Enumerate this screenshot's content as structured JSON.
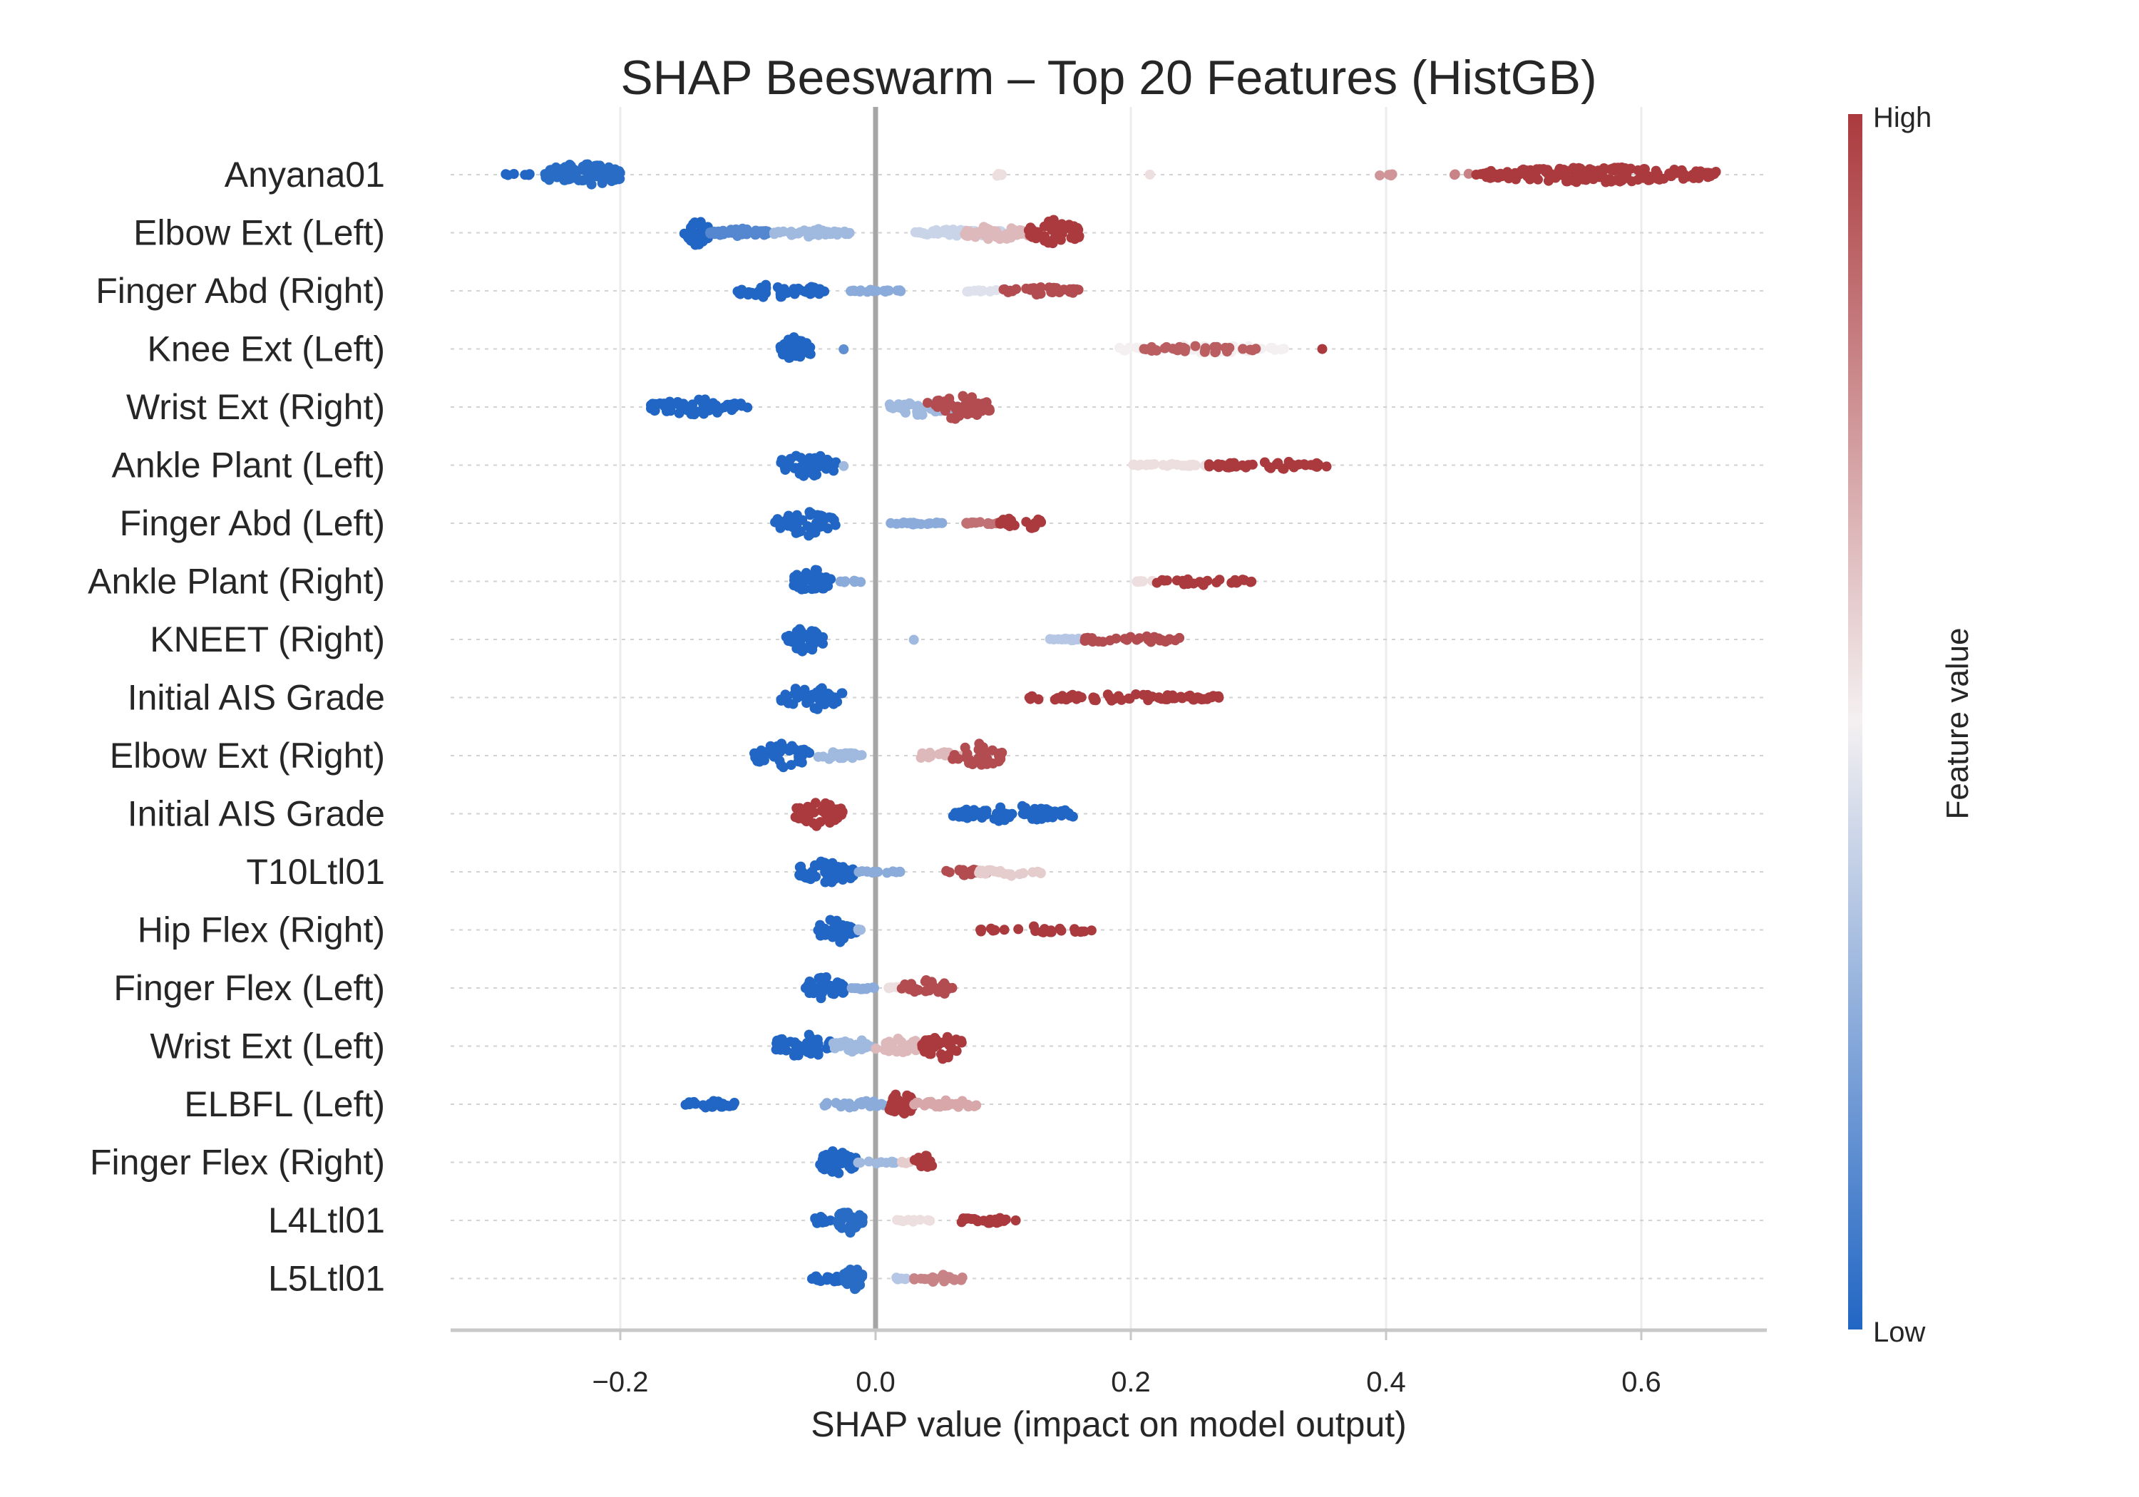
{
  "chart_data": {
    "type": "scatter",
    "subtype": "shap-beeswarm",
    "title": "SHAP Beeswarm – Top 20 Features (HistGB)",
    "xlabel": "SHAP value (impact on model output)",
    "xlim": [
      -0.33,
      0.71
    ],
    "xticks": [
      -0.2,
      0.0,
      0.2,
      0.4,
      0.6
    ],
    "xtick_labels": [
      "−0.2",
      "0.0",
      "0.2",
      "0.4",
      "0.6"
    ],
    "grid": true,
    "zero_line": true,
    "colorbar": {
      "label": "Feature value",
      "high_label": "High",
      "low_label": "Low",
      "colors": [
        "#2166c4",
        "#f4f0f1",
        "#ab3a3e"
      ]
    },
    "features": [
      {
        "name": "Anyana01",
        "clusters": [
          {
            "min": -0.29,
            "max": -0.27,
            "fv": 0.0,
            "n": 6
          },
          {
            "min": -0.26,
            "max": -0.2,
            "fv": 0.02,
            "n": 90,
            "width": 3
          },
          {
            "min": 0.09,
            "max": 0.1,
            "fv": 0.55,
            "n": 4
          },
          {
            "min": 0.215,
            "max": 0.215,
            "fv": 0.55,
            "n": 1
          },
          {
            "min": 0.39,
            "max": 0.41,
            "fv": 0.75,
            "n": 4
          },
          {
            "min": 0.45,
            "max": 0.47,
            "fv": 0.8,
            "n": 3
          },
          {
            "min": 0.47,
            "max": 0.66,
            "fv": 1.0,
            "n": 170,
            "width": 2
          }
        ]
      },
      {
        "name": "Elbow Ext (Left)",
        "clusters": [
          {
            "min": -0.15,
            "max": -0.13,
            "fv": 0.0,
            "n": 45,
            "width": 3
          },
          {
            "min": -0.13,
            "max": -0.08,
            "fv": 0.12,
            "n": 50,
            "width": 1
          },
          {
            "min": -0.08,
            "max": -0.02,
            "fv": 0.3,
            "n": 45,
            "width": 1
          },
          {
            "min": 0.03,
            "max": 0.1,
            "fv": 0.4,
            "n": 55,
            "width": 1
          },
          {
            "min": 0.07,
            "max": 0.12,
            "fv": 0.65,
            "n": 45,
            "width": 2
          },
          {
            "min": 0.12,
            "max": 0.16,
            "fv": 1.0,
            "n": 55,
            "width": 3
          }
        ]
      },
      {
        "name": "Finger Abd (Right)",
        "clusters": [
          {
            "min": -0.11,
            "max": -0.04,
            "fv": 0.0,
            "n": 45,
            "width": 2
          },
          {
            "min": -0.02,
            "max": 0.02,
            "fv": 0.25,
            "n": 18
          },
          {
            "min": 0.065,
            "max": 0.1,
            "fv": 0.45,
            "n": 10
          },
          {
            "min": 0.1,
            "max": 0.16,
            "fv": 0.95,
            "n": 35,
            "width": 1
          }
        ]
      },
      {
        "name": "Knee Ext (Left)",
        "clusters": [
          {
            "min": -0.075,
            "max": -0.05,
            "fv": 0.0,
            "n": 40,
            "width": 3
          },
          {
            "min": -0.025,
            "max": -0.025,
            "fv": 0.15,
            "n": 1
          },
          {
            "min": 0.19,
            "max": 0.32,
            "fv": 0.5,
            "n": 40,
            "width": 1
          },
          {
            "min": 0.21,
            "max": 0.3,
            "fv": 0.9,
            "n": 30,
            "width": 1
          },
          {
            "min": 0.35,
            "max": 0.35,
            "fv": 1.0,
            "n": 1
          }
        ]
      },
      {
        "name": "Wrist Ext (Right)",
        "clusters": [
          {
            "min": -0.18,
            "max": -0.1,
            "fv": 0.0,
            "n": 55,
            "width": 2
          },
          {
            "min": 0.01,
            "max": 0.06,
            "fv": 0.3,
            "n": 35,
            "width": 2
          },
          {
            "min": 0.04,
            "max": 0.09,
            "fv": 0.95,
            "n": 45,
            "width": 3
          }
        ]
      },
      {
        "name": "Ankle Plant (Left)",
        "clusters": [
          {
            "min": -0.075,
            "max": -0.03,
            "fv": 0.0,
            "n": 45,
            "width": 3
          },
          {
            "min": -0.025,
            "max": -0.025,
            "fv": 0.3,
            "n": 1
          },
          {
            "min": 0.2,
            "max": 0.26,
            "fv": 0.55,
            "n": 25
          },
          {
            "min": 0.26,
            "max": 0.36,
            "fv": 1.0,
            "n": 40,
            "width": 1
          }
        ]
      },
      {
        "name": "Finger Abd (Left)",
        "clusters": [
          {
            "min": -0.08,
            "max": -0.03,
            "fv": 0.0,
            "n": 45,
            "width": 3
          },
          {
            "min": 0.01,
            "max": 0.055,
            "fv": 0.25,
            "n": 22
          },
          {
            "min": 0.07,
            "max": 0.1,
            "fv": 0.85,
            "n": 18
          },
          {
            "min": 0.095,
            "max": 0.13,
            "fv": 1.0,
            "n": 20,
            "width": 2
          }
        ]
      },
      {
        "name": "Ankle Plant (Right)",
        "clusters": [
          {
            "min": -0.065,
            "max": -0.035,
            "fv": 0.0,
            "n": 40,
            "width": 3
          },
          {
            "min": -0.035,
            "max": -0.01,
            "fv": 0.25,
            "n": 8
          },
          {
            "min": 0.2,
            "max": 0.22,
            "fv": 0.55,
            "n": 8
          },
          {
            "min": 0.22,
            "max": 0.295,
            "fv": 1.0,
            "n": 25,
            "width": 1
          }
        ]
      },
      {
        "name": "KNEET (Right)",
        "clusters": [
          {
            "min": -0.07,
            "max": -0.04,
            "fv": 0.0,
            "n": 40,
            "width": 3
          },
          {
            "min": 0.03,
            "max": 0.03,
            "fv": 0.3,
            "n": 1
          },
          {
            "min": 0.135,
            "max": 0.18,
            "fv": 0.35,
            "n": 18
          },
          {
            "min": 0.16,
            "max": 0.24,
            "fv": 0.95,
            "n": 30,
            "width": 1
          }
        ]
      },
      {
        "name": "Initial AIS Grade",
        "clusters": [
          {
            "min": -0.075,
            "max": -0.025,
            "fv": 0.0,
            "n": 50,
            "width": 3
          },
          {
            "min": 0.12,
            "max": 0.27,
            "fv": 1.0,
            "n": 70,
            "width": 1
          }
        ]
      },
      {
        "name": "Elbow Ext (Right)",
        "clusters": [
          {
            "min": -0.095,
            "max": -0.05,
            "fv": 0.0,
            "n": 50,
            "width": 3
          },
          {
            "min": -0.05,
            "max": -0.01,
            "fv": 0.3,
            "n": 20,
            "width": 1
          },
          {
            "min": 0.03,
            "max": 0.07,
            "fv": 0.65,
            "n": 25,
            "width": 1
          },
          {
            "min": 0.06,
            "max": 0.1,
            "fv": 0.95,
            "n": 30,
            "width": 3
          }
        ]
      },
      {
        "name": "Initial AIS Grade",
        "clusters": [
          {
            "min": -0.065,
            "max": -0.025,
            "fv": 1.0,
            "n": 50,
            "width": 3
          },
          {
            "min": 0.06,
            "max": 0.155,
            "fv": 0.0,
            "n": 70,
            "width": 2
          }
        ]
      },
      {
        "name": "T10Ltl01",
        "clusters": [
          {
            "min": -0.06,
            "max": -0.015,
            "fv": 0.0,
            "n": 45,
            "width": 3
          },
          {
            "min": -0.015,
            "max": 0.02,
            "fv": 0.25,
            "n": 12
          },
          {
            "min": 0.055,
            "max": 0.09,
            "fv": 0.95,
            "n": 18,
            "width": 1
          },
          {
            "min": 0.08,
            "max": 0.135,
            "fv": 0.6,
            "n": 22,
            "width": 1
          }
        ]
      },
      {
        "name": "Hip Flex (Right)",
        "clusters": [
          {
            "min": -0.045,
            "max": -0.015,
            "fv": 0.0,
            "n": 40,
            "width": 3
          },
          {
            "min": -0.015,
            "max": -0.01,
            "fv": 0.3,
            "n": 3
          },
          {
            "min": 0.08,
            "max": 0.17,
            "fv": 1.0,
            "n": 25,
            "width": 1
          }
        ]
      },
      {
        "name": "Finger Flex (Left)",
        "clusters": [
          {
            "min": -0.055,
            "max": -0.025,
            "fv": 0.0,
            "n": 40,
            "width": 3
          },
          {
            "min": -0.02,
            "max": 0.0,
            "fv": 0.25,
            "n": 10
          },
          {
            "min": 0.01,
            "max": 0.03,
            "fv": 0.55,
            "n": 8
          },
          {
            "min": 0.02,
            "max": 0.065,
            "fv": 0.95,
            "n": 25,
            "width": 2
          }
        ]
      },
      {
        "name": "Wrist Ext (Left)",
        "clusters": [
          {
            "min": -0.08,
            "max": -0.035,
            "fv": 0.0,
            "n": 45,
            "width": 3
          },
          {
            "min": -0.035,
            "max": 0.0,
            "fv": 0.3,
            "n": 25,
            "width": 2
          },
          {
            "min": 0.0,
            "max": 0.04,
            "fv": 0.65,
            "n": 30,
            "width": 2
          },
          {
            "min": 0.035,
            "max": 0.07,
            "fv": 1.0,
            "n": 35,
            "width": 3
          }
        ]
      },
      {
        "name": "ELBFL (Left)",
        "clusters": [
          {
            "min": -0.15,
            "max": -0.11,
            "fv": 0.0,
            "n": 25,
            "width": 1
          },
          {
            "min": -0.04,
            "max": 0.01,
            "fv": 0.25,
            "n": 25,
            "width": 1
          },
          {
            "min": 0.01,
            "max": 0.03,
            "fv": 1.0,
            "n": 35,
            "width": 3
          },
          {
            "min": 0.03,
            "max": 0.085,
            "fv": 0.7,
            "n": 30,
            "width": 1
          }
        ]
      },
      {
        "name": "Finger Flex (Right)",
        "clusters": [
          {
            "min": -0.045,
            "max": -0.015,
            "fv": 0.0,
            "n": 40,
            "width": 3
          },
          {
            "min": -0.015,
            "max": 0.02,
            "fv": 0.3,
            "n": 10
          },
          {
            "min": 0.02,
            "max": 0.03,
            "fv": 0.6,
            "n": 5
          },
          {
            "min": 0.03,
            "max": 0.045,
            "fv": 1.0,
            "n": 15,
            "width": 2
          }
        ]
      },
      {
        "name": "L4Ltl01",
        "clusters": [
          {
            "min": -0.05,
            "max": -0.035,
            "fv": 0.0,
            "n": 10,
            "width": 1
          },
          {
            "min": -0.03,
            "max": -0.01,
            "fv": 0.02,
            "n": 40,
            "width": 3
          },
          {
            "min": 0.015,
            "max": 0.045,
            "fv": 0.55,
            "n": 10
          },
          {
            "min": 0.06,
            "max": 0.11,
            "fv": 1.0,
            "n": 22,
            "width": 1
          }
        ]
      },
      {
        "name": "L5Ltl01",
        "clusters": [
          {
            "min": -0.05,
            "max": -0.025,
            "fv": 0.0,
            "n": 20,
            "width": 1
          },
          {
            "min": -0.025,
            "max": -0.01,
            "fv": 0.02,
            "n": 40,
            "width": 3
          },
          {
            "min": 0.01,
            "max": 0.025,
            "fv": 0.35,
            "n": 6
          },
          {
            "min": 0.03,
            "max": 0.07,
            "fv": 0.8,
            "n": 25,
            "width": 1
          }
        ]
      }
    ]
  }
}
